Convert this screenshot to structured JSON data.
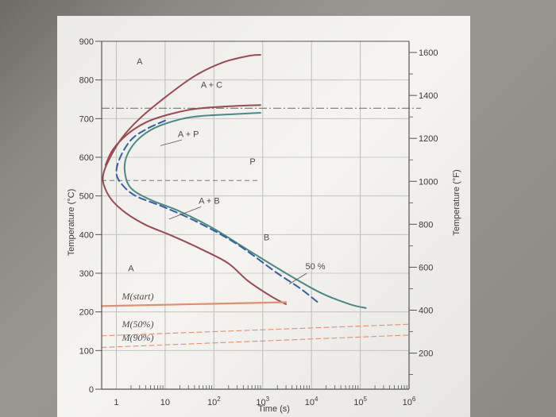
{
  "chart_data": {
    "type": "line",
    "xlabel": "Time (s)",
    "ylabel_left": "Temperature (°C)",
    "ylabel_right": "Temperature (°F)",
    "x_scale": "log",
    "xlim": [
      0.5,
      1000000
    ],
    "ylim": [
      0,
      900
    ],
    "x_ticks": [
      {
        "value": 1,
        "label": "1"
      },
      {
        "value": 10,
        "label": "10"
      },
      {
        "value": 100,
        "label": "10",
        "sup": "2"
      },
      {
        "value": 1000,
        "label": "10",
        "sup": "3"
      },
      {
        "value": 10000,
        "label": "10",
        "sup": "4"
      },
      {
        "value": 100000,
        "label": "10",
        "sup": "5"
      },
      {
        "value": 1000000,
        "label": "10",
        "sup": "6"
      }
    ],
    "y_ticks_c": [
      {
        "value": 0,
        "label": "0"
      },
      {
        "value": 100,
        "label": "100"
      },
      {
        "value": 200,
        "label": "200"
      },
      {
        "value": 300,
        "label": "300"
      },
      {
        "value": 400,
        "label": "400"
      },
      {
        "value": 500,
        "label": "500"
      },
      {
        "value": 600,
        "label": "600"
      },
      {
        "value": 700,
        "label": "700"
      },
      {
        "value": 800,
        "label": "800"
      },
      {
        "value": 900,
        "label": "900"
      }
    ],
    "y_ticks_f": [
      {
        "value": 200,
        "label": "200"
      },
      {
        "value": 400,
        "label": "400"
      },
      {
        "value": 600,
        "label": "600"
      },
      {
        "value": 800,
        "label": "800"
      },
      {
        "value": 1000,
        "label": "1000"
      },
      {
        "value": 1200,
        "label": "1200"
      },
      {
        "value": 1400,
        "label": "1400"
      },
      {
        "value": 1600,
        "label": "1600"
      }
    ],
    "eutectoid_temp": 727,
    "pearlite_bainite_boundary": 540,
    "series": [
      {
        "key": "bainite-finish",
        "color": "#9a4a52",
        "style": "solid",
        "points": [
          [
            900,
            865
          ],
          [
            500,
            862
          ],
          [
            150,
            845
          ],
          [
            40,
            810
          ],
          [
            10,
            755
          ],
          [
            3,
            700
          ],
          [
            1.3,
            650
          ],
          [
            0.75,
            600
          ],
          [
            0.55,
            560
          ],
          [
            0.55,
            530
          ],
          [
            0.8,
            490
          ],
          [
            1.6,
            455
          ],
          [
            4,
            425
          ],
          [
            15,
            395
          ],
          [
            60,
            360
          ],
          [
            200,
            325
          ],
          [
            500,
            280
          ],
          [
            1500,
            240
          ],
          [
            3000,
            220
          ]
        ]
      },
      {
        "key": "pearlite-finish",
        "color": "#9a4a52",
        "style": "solid",
        "points": [
          [
            900,
            735
          ],
          [
            300,
            733
          ],
          [
            40,
            725
          ],
          [
            10,
            708
          ],
          [
            4,
            690
          ],
          [
            1.7,
            660
          ],
          [
            0.85,
            620
          ],
          [
            0.6,
            580
          ]
        ]
      },
      {
        "key": "start",
        "color": "#4a8a86",
        "style": "solid",
        "points": [
          [
            900,
            715
          ],
          [
            300,
            712
          ],
          [
            40,
            705
          ],
          [
            12,
            690
          ],
          [
            5,
            670
          ],
          [
            2.5,
            640
          ],
          [
            1.6,
            600
          ],
          [
            1.5,
            560
          ],
          [
            2,
            520
          ],
          [
            5,
            490
          ],
          [
            20,
            460
          ],
          [
            100,
            415
          ],
          [
            500,
            360
          ],
          [
            3000,
            300
          ],
          [
            15000,
            250
          ],
          [
            60000,
            220
          ],
          [
            130000,
            210
          ]
        ]
      },
      {
        "key": "fifty-percent",
        "color": "#3a5fa0",
        "style": "dashed",
        "points": [
          [
            10,
            695
          ],
          [
            4,
            672
          ],
          [
            2,
            645
          ],
          [
            1.2,
            600
          ],
          [
            1,
            560
          ],
          [
            1.3,
            530
          ],
          [
            2.5,
            500
          ],
          [
            10,
            470
          ],
          [
            50,
            430
          ],
          [
            300,
            375
          ],
          [
            2000,
            300
          ],
          [
            6000,
            260
          ],
          [
            15000,
            220
          ]
        ]
      },
      {
        "key": "m-start",
        "color": "#e09070",
        "style": "solid",
        "points": [
          [
            0.5,
            215
          ],
          [
            3000,
            225
          ]
        ]
      },
      {
        "key": "m-50",
        "color": "#e09070",
        "style": "dashed",
        "points": [
          [
            0.5,
            138
          ],
          [
            1000000,
            168
          ]
        ]
      },
      {
        "key": "m-90",
        "color": "#e09070",
        "style": "dashed",
        "points": [
          [
            0.5,
            108
          ],
          [
            1000000,
            140
          ]
        ]
      }
    ],
    "regions": [
      {
        "label": "A",
        "x": 3,
        "y": 840
      },
      {
        "label": "A + C",
        "x": 90,
        "y": 780
      },
      {
        "label": "A + P",
        "x": 30,
        "y": 652
      },
      {
        "label": "P",
        "x": 620,
        "y": 582
      },
      {
        "label": "A + B",
        "x": 80,
        "y": 480
      },
      {
        "label": "B",
        "x": 1200,
        "y": 385
      },
      {
        "label": "A",
        "x": 2,
        "y": 305
      },
      {
        "label": "50 %",
        "x": 12000,
        "y": 310
      }
    ],
    "martensite_labels": [
      {
        "text": "M(start)",
        "x": 1.3,
        "y": 232
      },
      {
        "text": "M(50%)",
        "x": 1.3,
        "y": 160
      },
      {
        "text": "M(90%)",
        "x": 1.3,
        "y": 125
      }
    ]
  },
  "colors": {
    "paper": "#f4f3ef",
    "grid": "#bdbdbd",
    "axis": "#555555"
  }
}
